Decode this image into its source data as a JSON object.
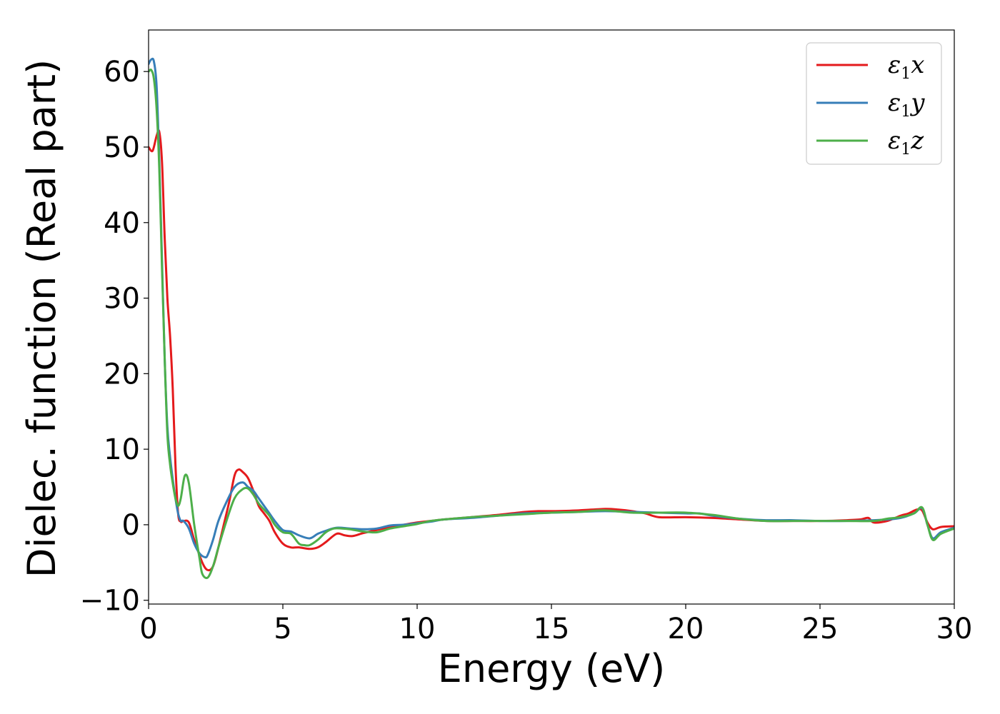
{
  "chart_data": {
    "type": "line",
    "xlabel": "Energy (eV)",
    "ylabel": "Dielec. function (Real part)",
    "xlim": [
      0,
      30
    ],
    "ylim": [
      -10.5,
      65.5
    ],
    "xticks": [
      0,
      5,
      10,
      15,
      20,
      25,
      30
    ],
    "xtick_labels": [
      "0",
      "5",
      "10",
      "15",
      "20",
      "25",
      "30"
    ],
    "yticks": [
      -10,
      0,
      10,
      20,
      30,
      40,
      50,
      60
    ],
    "ytick_labels": [
      "−10",
      "0",
      "10",
      "20",
      "30",
      "40",
      "50",
      "60"
    ],
    "grid": false,
    "legend_position": "top-right",
    "series": [
      {
        "name": "ε1x",
        "legend_main": "ε",
        "legend_sub": "1",
        "legend_tail": "x",
        "color": "#e41a1c",
        "x": [
          0,
          0.15,
          0.3,
          0.4,
          0.5,
          0.6,
          0.7,
          0.8,
          0.9,
          1.0,
          1.1,
          1.2,
          1.3,
          1.5,
          1.7,
          2.0,
          2.2,
          2.4,
          2.6,
          2.8,
          3.0,
          3.2,
          3.35,
          3.5,
          3.7,
          3.9,
          4.1,
          4.3,
          4.5,
          4.7,
          5.0,
          5.3,
          5.6,
          6.0,
          6.3,
          6.6,
          7.0,
          7.3,
          7.6,
          8.0,
          8.5,
          9.0,
          9.5,
          10.0,
          10.5,
          11.0,
          12.0,
          13.0,
          14.0,
          14.5,
          15.0,
          16.0,
          17.0,
          17.5,
          18.0,
          18.5,
          19.0,
          20.0,
          21.0,
          22.0,
          23.0,
          24.0,
          25.0,
          26.0,
          26.5,
          26.8,
          27.0,
          27.5,
          28.0,
          28.3,
          28.6,
          28.8,
          29.0,
          29.2,
          29.5,
          30.0
        ],
        "y": [
          50,
          49.5,
          51.5,
          52,
          48,
          38,
          30,
          25,
          18,
          8,
          1.5,
          0.4,
          0.5,
          0.3,
          -2,
          -5,
          -6,
          -5.5,
          -3,
          0,
          3,
          6.5,
          7.3,
          7,
          6.2,
          4.5,
          2.5,
          1.5,
          0.5,
          -1,
          -2.5,
          -3,
          -3,
          -3.2,
          -3,
          -2.3,
          -1.2,
          -1.4,
          -1.5,
          -1.1,
          -0.7,
          -0.3,
          0,
          0.3,
          0.5,
          0.7,
          1,
          1.3,
          1.7,
          1.8,
          1.8,
          1.9,
          2.1,
          2,
          1.8,
          1.5,
          1,
          1,
          0.9,
          0.7,
          0.5,
          0.5,
          0.5,
          0.6,
          0.7,
          0.9,
          0.3,
          0.5,
          1.2,
          1.5,
          2,
          1.9,
          0.3,
          -0.6,
          -0.3,
          -0.2
        ]
      },
      {
        "name": "ε1y",
        "legend_main": "ε",
        "legend_sub": "1",
        "legend_tail": "y",
        "color": "#377eb8",
        "x": [
          0,
          0.1,
          0.2,
          0.3,
          0.4,
          0.5,
          0.6,
          0.7,
          0.8,
          0.9,
          1.0,
          1.1,
          1.2,
          1.3,
          1.5,
          1.7,
          1.9,
          2.1,
          2.2,
          2.4,
          2.6,
          2.9,
          3.2,
          3.5,
          3.7,
          3.9,
          4.1,
          4.3,
          4.5,
          4.7,
          5.0,
          5.3,
          5.6,
          6.0,
          6.3,
          6.6,
          7.0,
          7.5,
          8.0,
          8.5,
          9.0,
          9.5,
          10.0,
          10.5,
          11.0,
          12.0,
          13.0,
          14.0,
          15.0,
          16.0,
          17.0,
          18.0,
          19.0,
          20.0,
          20.5,
          21.0,
          22.0,
          23.0,
          24.0,
          25.0,
          26.0,
          27.0,
          27.5,
          28.0,
          28.5,
          28.8,
          29.0,
          29.2,
          29.5,
          30.0
        ],
        "y": [
          61,
          61.6,
          61.3,
          58,
          48,
          35,
          22,
          13,
          9,
          6,
          3.5,
          1.5,
          0.5,
          0.5,
          -0.5,
          -2.5,
          -3.8,
          -4.3,
          -4,
          -2,
          0.5,
          3,
          5,
          5.6,
          5,
          4.5,
          3.5,
          2.5,
          1.5,
          0.5,
          -0.7,
          -0.9,
          -1.4,
          -1.8,
          -1.2,
          -0.8,
          -0.4,
          -0.5,
          -0.6,
          -0.5,
          -0.1,
          0,
          0.2,
          0.4,
          0.7,
          0.9,
          1.2,
          1.5,
          1.6,
          1.7,
          1.8,
          1.7,
          1.6,
          1.5,
          1.5,
          1.2,
          0.8,
          0.6,
          0.6,
          0.5,
          0.5,
          0.6,
          0.7,
          0.9,
          1.5,
          2.2,
          0,
          -1.8,
          -1,
          -0.4
        ]
      },
      {
        "name": "ε1z",
        "legend_main": "ε",
        "legend_sub": "1",
        "legend_tail": "z",
        "color": "#4daf4a",
        "x": [
          0,
          0.1,
          0.2,
          0.3,
          0.4,
          0.5,
          0.6,
          0.7,
          0.8,
          0.9,
          1.0,
          1.1,
          1.2,
          1.35,
          1.5,
          1.7,
          1.9,
          2.0,
          2.2,
          2.4,
          2.6,
          2.9,
          3.2,
          3.5,
          3.7,
          3.9,
          4.1,
          4.3,
          4.5,
          4.7,
          5.0,
          5.3,
          5.6,
          5.8,
          6.0,
          6.3,
          6.6,
          6.9,
          7.2,
          7.5,
          8.0,
          8.5,
          9.0,
          9.5,
          10.0,
          10.5,
          11.0,
          12.0,
          13.0,
          14.0,
          15.0,
          16.0,
          17.0,
          18.0,
          19.0,
          20.0,
          21.0,
          22.0,
          23.0,
          24.0,
          25.0,
          26.0,
          27.0,
          27.5,
          28.0,
          28.5,
          28.8,
          29.0,
          29.2,
          29.5,
          30.0
        ],
        "y": [
          60,
          60.2,
          59,
          55,
          47,
          34,
          22,
          12,
          8,
          5.5,
          3.5,
          2.5,
          3.5,
          6.5,
          5.5,
          0,
          -4.5,
          -6.5,
          -7,
          -5.5,
          -3,
          0.5,
          3.5,
          4.7,
          4.8,
          4,
          2.8,
          2,
          1.2,
          0,
          -1,
          -1.2,
          -2.5,
          -2.7,
          -2.7,
          -2,
          -1,
          -0.5,
          -0.5,
          -0.6,
          -0.9,
          -1,
          -0.5,
          -0.2,
          0.1,
          0.5,
          0.7,
          1,
          1.2,
          1.4,
          1.6,
          1.7,
          1.9,
          1.6,
          1.6,
          1.6,
          1.3,
          0.8,
          0.5,
          0.5,
          0.5,
          0.5,
          0.5,
          0.8,
          1,
          1.5,
          2.3,
          0,
          -2,
          -1.2,
          -0.5
        ]
      }
    ]
  }
}
